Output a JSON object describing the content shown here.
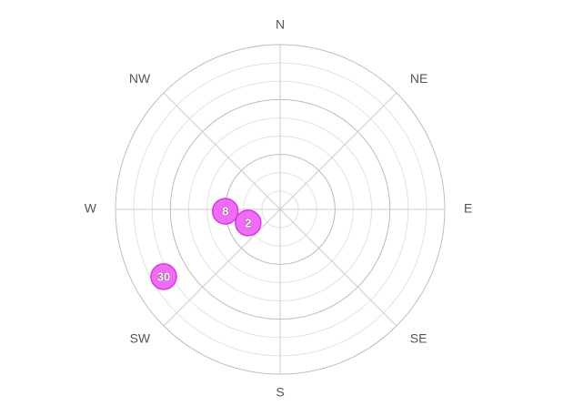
{
  "chart_data": {
    "type": "polar-scatter",
    "categories": [
      "N",
      "NE",
      "E",
      "SE",
      "S",
      "SW",
      "W",
      "NW"
    ],
    "thetalim": [
      0,
      360
    ],
    "rlim": [
      0,
      9
    ],
    "rticks": [
      1,
      2,
      3,
      4,
      5,
      6,
      7,
      8,
      9
    ],
    "grid": true,
    "series": [
      {
        "color": "#ee5cf3",
        "theta": [
          268,
          247,
          240
        ],
        "r": [
          3.0,
          1.9,
          7.35
        ],
        "values": [
          8,
          2,
          30
        ]
      }
    ]
  }
}
